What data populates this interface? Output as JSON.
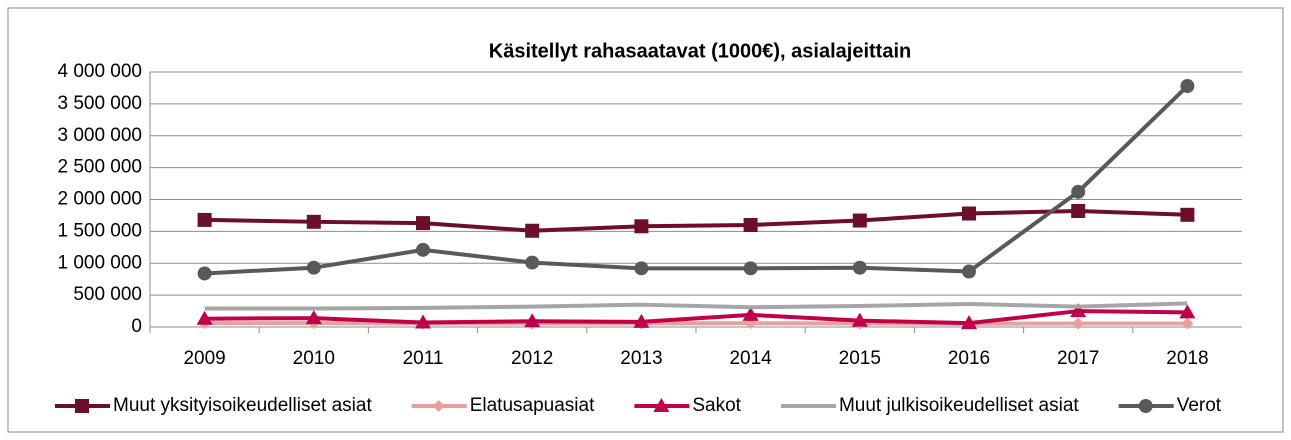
{
  "chart_data": {
    "type": "line",
    "title": "Käsitellyt rahasaatavat (1000€), asialajeittain",
    "categories": [
      "2009",
      "2010",
      "2011",
      "2012",
      "2013",
      "2014",
      "2015",
      "2016",
      "2017",
      "2018"
    ],
    "series": [
      {
        "name": "Muut yksityisoikeudelliset asiat",
        "color": "#6b0f2b",
        "marker": "square",
        "values": [
          1680000,
          1650000,
          1630000,
          1510000,
          1580000,
          1600000,
          1670000,
          1780000,
          1820000,
          1760000
        ]
      },
      {
        "name": "Elatusapuasiat",
        "color": "#e8a09b",
        "marker": "diamond",
        "values": [
          60000,
          60000,
          55000,
          55000,
          55000,
          60000,
          55000,
          50000,
          55000,
          55000
        ]
      },
      {
        "name": "Sakot",
        "color": "#c0004a",
        "marker": "triangle",
        "values": [
          130000,
          140000,
          70000,
          90000,
          80000,
          190000,
          100000,
          60000,
          250000,
          230000
        ]
      },
      {
        "name": "Muut julkisoikeudelliset asiat",
        "color": "#a6a6a6",
        "marker": "none",
        "values": [
          290000,
          290000,
          300000,
          320000,
          350000,
          310000,
          330000,
          360000,
          320000,
          370000
        ]
      },
      {
        "name": "Verot",
        "color": "#595959",
        "marker": "circle",
        "values": [
          840000,
          930000,
          1210000,
          1010000,
          920000,
          920000,
          930000,
          870000,
          2120000,
          3780000
        ]
      }
    ],
    "ylim": [
      0,
      4000000
    ],
    "yticks": [
      0,
      {
        "value": 500000,
        "label": "500 000"
      },
      {
        "value": 1000000,
        "label": "1 000 000"
      },
      {
        "value": 1500000,
        "label": "1 500 000"
      },
      {
        "value": 2000000,
        "label": "2 000 000"
      },
      {
        "value": 2500000,
        "label": "2 500 000"
      },
      {
        "value": 3000000,
        "label": "3 000 000"
      },
      {
        "value": 3500000,
        "label": "3 500 000"
      },
      {
        "value": 4000000,
        "label": "4 000 000"
      }
    ],
    "grid": true,
    "legend": "bottom"
  }
}
